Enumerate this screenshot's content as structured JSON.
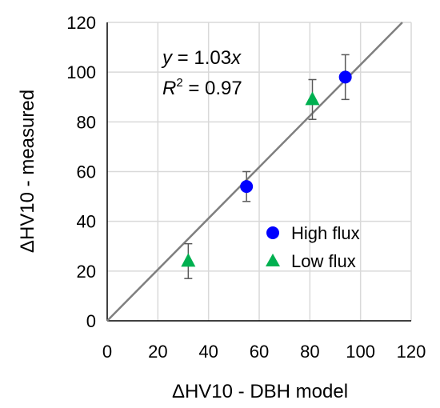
{
  "chart_data": {
    "type": "scatter",
    "title": "",
    "xlabel": "ΔHV10 - DBH model",
    "ylabel": "ΔHV10 - measured",
    "xlim": [
      0,
      120
    ],
    "ylim": [
      0,
      120
    ],
    "x_ticks": [
      0,
      20,
      40,
      60,
      80,
      100,
      120
    ],
    "y_ticks": [
      0,
      20,
      40,
      60,
      80,
      100,
      120
    ],
    "grid": true,
    "legend_position": "lower-right",
    "series": [
      {
        "name": "High flux",
        "marker": "circle",
        "color": "#0000ff",
        "points": [
          {
            "x": 55,
            "y": 54,
            "err_low": 48,
            "err_high": 60
          },
          {
            "x": 94,
            "y": 98,
            "err_low": 89,
            "err_high": 107
          }
        ]
      },
      {
        "name": "Low flux",
        "marker": "triangle",
        "color": "#00b050",
        "points": [
          {
            "x": 32,
            "y": 24,
            "err_low": 17,
            "err_high": 31
          },
          {
            "x": 81,
            "y": 89,
            "err_low": 81,
            "err_high": 97
          }
        ]
      }
    ],
    "fit_line": {
      "slope": 1.03,
      "color": "#7f7f7f"
    },
    "equation": {
      "line1_var": "y",
      "line1_rest": " = 1.03",
      "line1_var2": "x",
      "line2_var": "R",
      "line2_sup": "2",
      "line2_rest": " = 0.97"
    }
  }
}
